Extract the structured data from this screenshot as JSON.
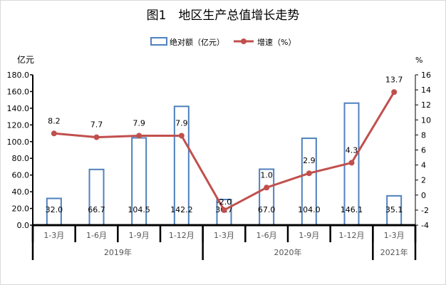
{
  "chart_data": {
    "type": "bar+line",
    "title": "图1　地区生产总值增长走势",
    "categories": [
      "1-3月",
      "1-6月",
      "1-9月",
      "1-12月",
      "1-3月",
      "1-6月",
      "1-9月",
      "1-12月",
      "1-3月"
    ],
    "groups": [
      {
        "label": "2019年",
        "count": 4
      },
      {
        "label": "2020年",
        "count": 4
      },
      {
        "label": "2021年",
        "count": 1
      }
    ],
    "series": [
      {
        "name": "绝对额（亿元）",
        "type": "bar",
        "axis": "left",
        "values": [
          32.0,
          66.7,
          104.5,
          142.2,
          30.7,
          67.0,
          104.0,
          146.1,
          35.1
        ],
        "labels": [
          "32.0",
          "66.7",
          "104.5",
          "142.2",
          "30.7",
          "67.0",
          "104.0",
          "146.1",
          "35.1"
        ]
      },
      {
        "name": "增速（%）",
        "type": "line",
        "axis": "right",
        "values": [
          8.2,
          7.7,
          7.9,
          7.9,
          -2.0,
          1.0,
          2.9,
          4.3,
          13.7
        ],
        "labels": [
          "8.2",
          "7.7",
          "7.9",
          "7.9",
          "-2.0",
          "1.0",
          "2.9",
          "4.3",
          "13.7"
        ]
      }
    ],
    "ylabel_left": "亿元",
    "ylabel_right": "%",
    "ylim_left": [
      0,
      180
    ],
    "yticks_left": [
      "0.0",
      "20.0",
      "40.0",
      "60.0",
      "80.0",
      "100.0",
      "120.0",
      "140.0",
      "160.0",
      "180.0"
    ],
    "ylim_right": [
      -4,
      16
    ],
    "yticks_right": [
      "-4",
      "-2",
      "0",
      "2",
      "4",
      "6",
      "8",
      "10",
      "12",
      "14",
      "16"
    ],
    "legend": "top-center",
    "grid": false,
    "colors": {
      "bar": "#4f81bd",
      "line": "#c0504d"
    }
  }
}
